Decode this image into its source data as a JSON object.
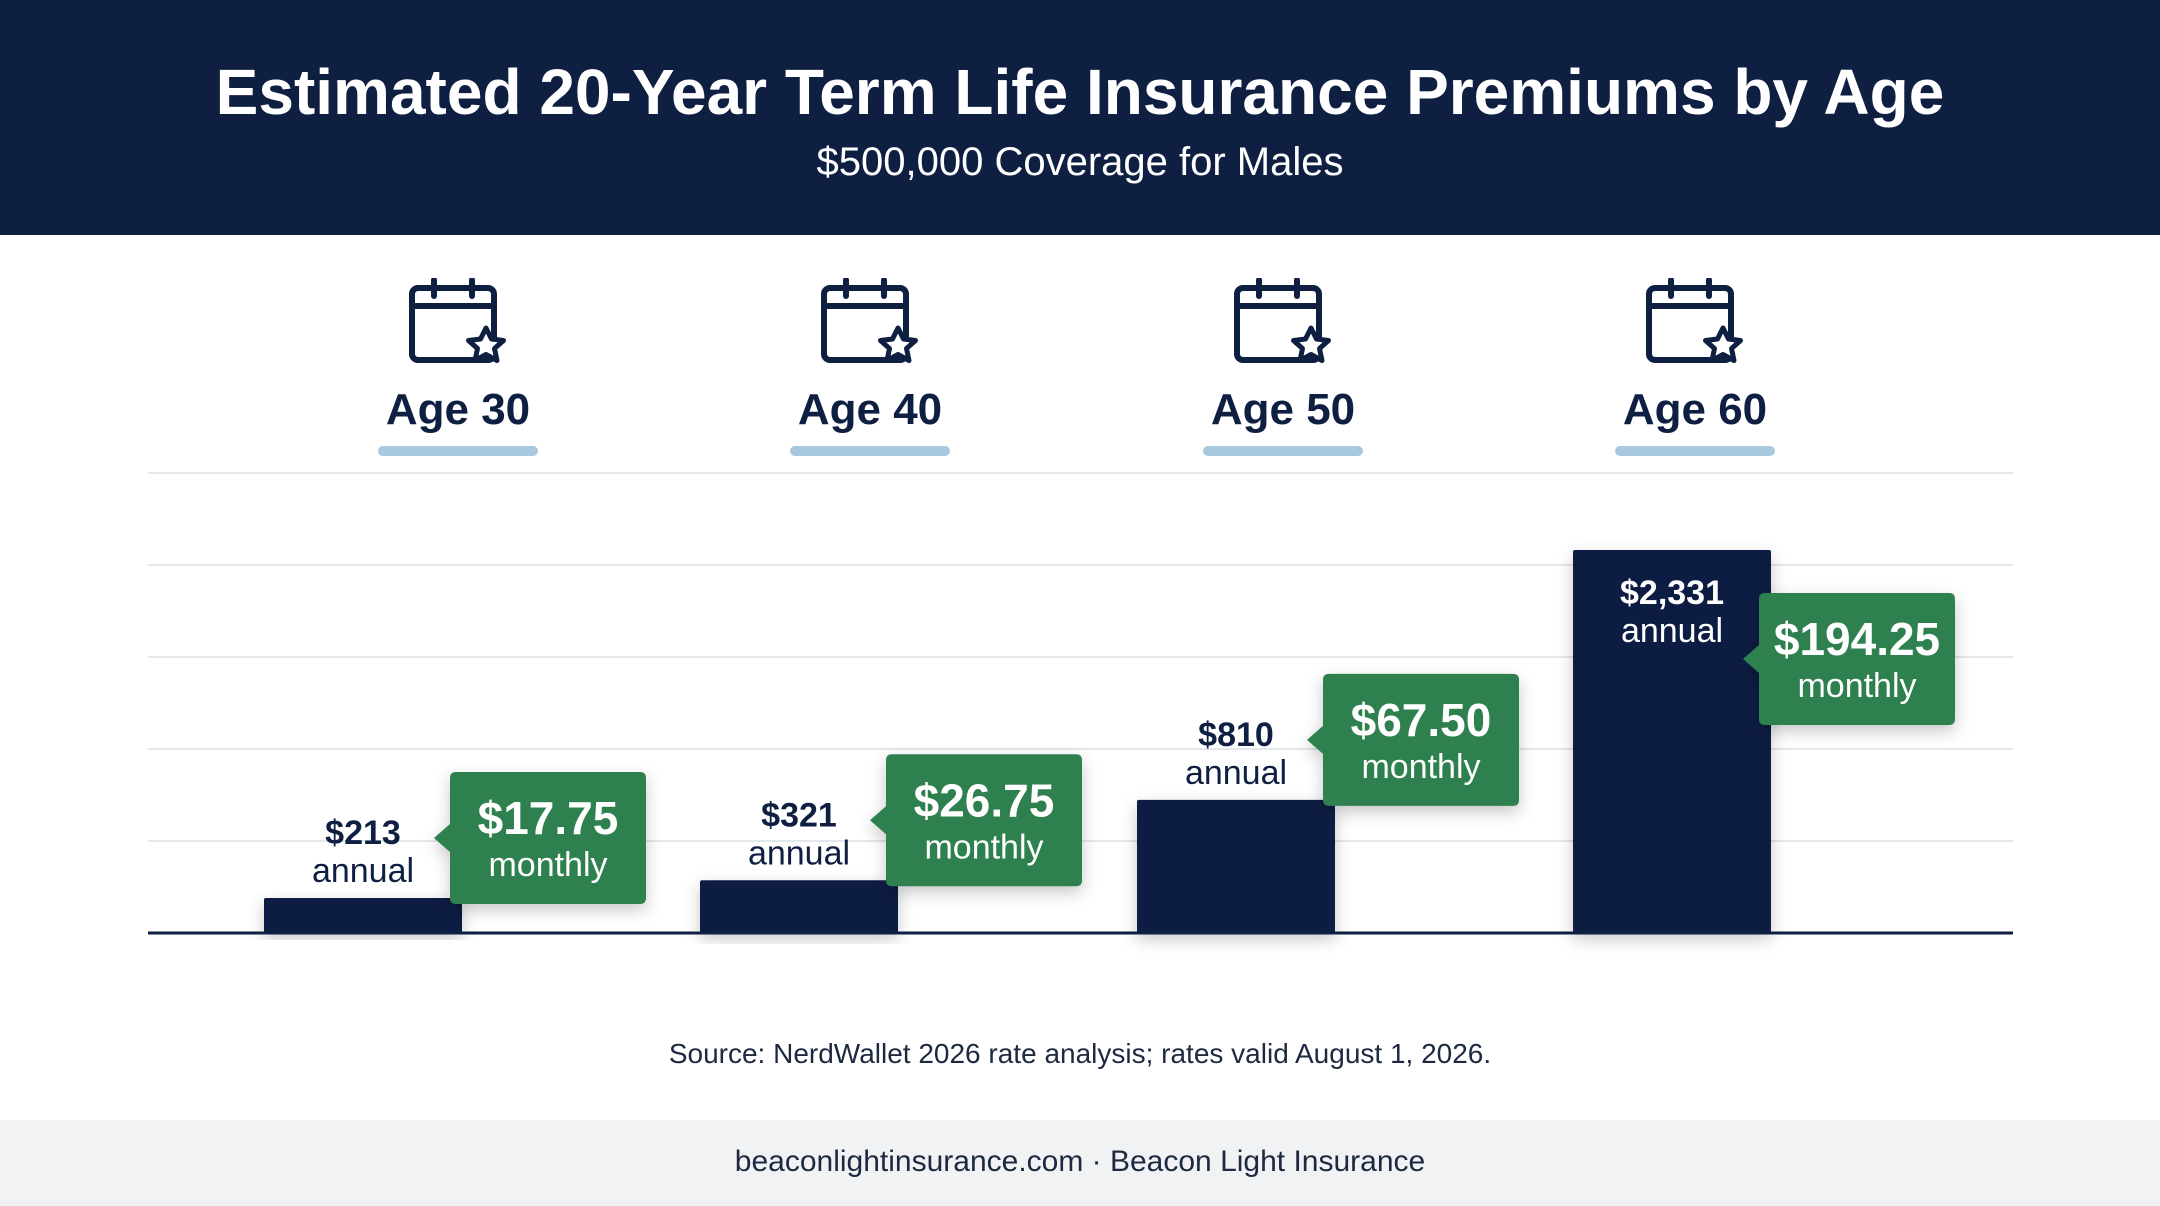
{
  "header": {
    "title": "Estimated 20-Year Term Life Insurance Premiums by Age",
    "subtitle": "$500,000 Coverage for Males"
  },
  "age_groups": [
    {
      "label": "Age 30",
      "icon": "calendar-star-icon"
    },
    {
      "label": "Age 40",
      "icon": "calendar-star-icon"
    },
    {
      "label": "Age 50",
      "icon": "calendar-star-icon"
    },
    {
      "label": "Age 60",
      "icon": "calendar-star-icon"
    }
  ],
  "chart_data": {
    "type": "bar",
    "categories": [
      "Age 30",
      "Age 40",
      "Age 50",
      "Age 60"
    ],
    "values": [
      213,
      321,
      810,
      2331
    ],
    "annual_labels": [
      "$213",
      "$321",
      "$810",
      "$2,331"
    ],
    "annual_suffix": "annual",
    "monthly_labels": [
      "$17.75",
      "$26.75",
      "$67.50",
      "$194.25"
    ],
    "monthly_suffix": "monthly",
    "ylim": [
      0,
      2800
    ],
    "grid": true,
    "colors": {
      "bar": "#0e1f42",
      "callout": "#2e8050",
      "grid": "#e4e7eb",
      "axis": "#0e1f42"
    }
  },
  "source": "Source: NerdWallet 2026 rate analysis; rates valid August 1, 2026.",
  "footer": "beaconlightinsurance.com · Beacon Light Insurance"
}
